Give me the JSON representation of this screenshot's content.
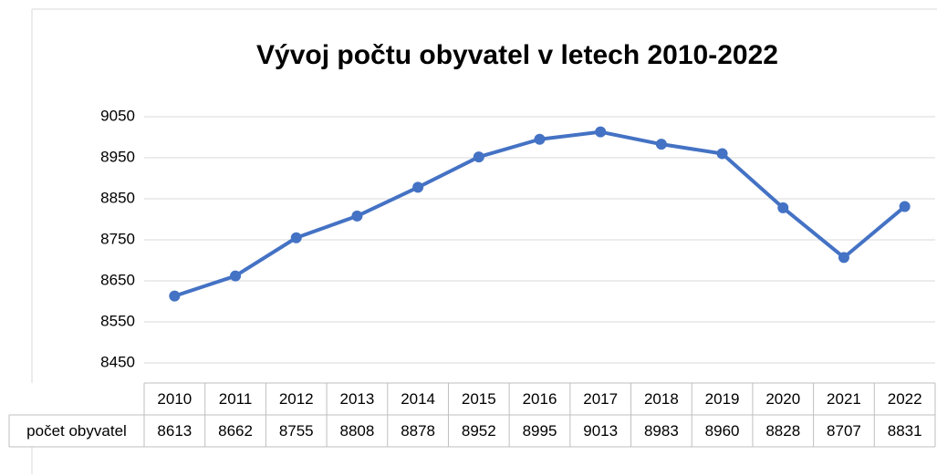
{
  "chart_data": {
    "type": "line",
    "title": "Vývoj počtu obyvatel v letech 2010-2022",
    "categories": [
      "2010",
      "2011",
      "2012",
      "2013",
      "2014",
      "2015",
      "2016",
      "2017",
      "2018",
      "2019",
      "2020",
      "2021",
      "2022"
    ],
    "series": [
      {
        "name": "počet obyvatel",
        "color": "#4472c4",
        "values": [
          8613,
          8662,
          8755,
          8808,
          8878,
          8952,
          8995,
          9013,
          8983,
          8960,
          8828,
          8707,
          8831
        ]
      }
    ],
    "ylim": [
      8400,
      9100
    ],
    "yticks": [
      8450,
      8550,
      8650,
      8750,
      8850,
      8950,
      9050
    ],
    "grid": true
  }
}
